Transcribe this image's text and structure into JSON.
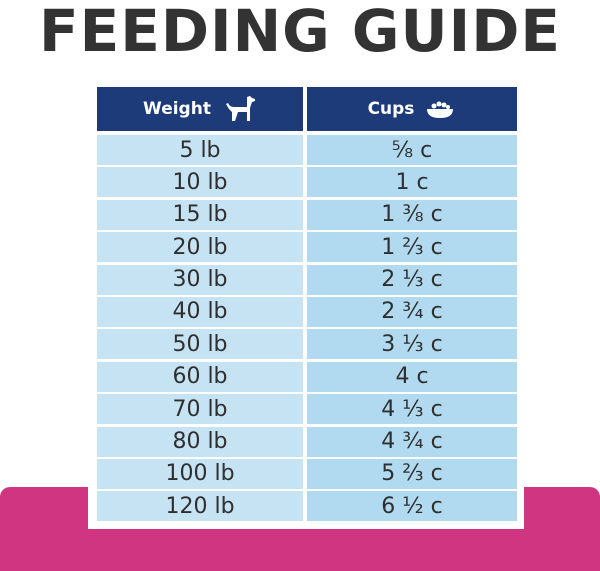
{
  "title": "FEEDING GUIDE",
  "table": {
    "headers": {
      "weight": "Weight",
      "cups": "Cups",
      "weight_icon": "dog-icon",
      "cups_icon": "food-bowl-icon"
    },
    "rows": [
      {
        "weight": "5 lb",
        "cups": "⅝ c"
      },
      {
        "weight": "10 lb",
        "cups": "1 c"
      },
      {
        "weight": "15 lb",
        "cups": "1 ⅜ c"
      },
      {
        "weight": "20 lb",
        "cups": "1 ⅔ c"
      },
      {
        "weight": "30 lb",
        "cups": "2 ⅓ c"
      },
      {
        "weight": "40 lb",
        "cups": "2 ¾ c"
      },
      {
        "weight": "50 lb",
        "cups": "3 ⅓ c"
      },
      {
        "weight": "60 lb",
        "cups": "4 c"
      },
      {
        "weight": "70 lb",
        "cups": "4 ⅓ c"
      },
      {
        "weight": "80 lb",
        "cups": "4 ¾ c"
      },
      {
        "weight": "100 lb",
        "cups": "5 ⅔ c"
      },
      {
        "weight": "120 lb",
        "cups": "6 ½ c"
      }
    ]
  },
  "colors": {
    "title_text": "#333333",
    "header_bg": "#1c3b78",
    "weight_cell_bg": "#c6e3f3",
    "cups_cell_bg": "#b1daf0",
    "accent_band": "#cf3581"
  }
}
